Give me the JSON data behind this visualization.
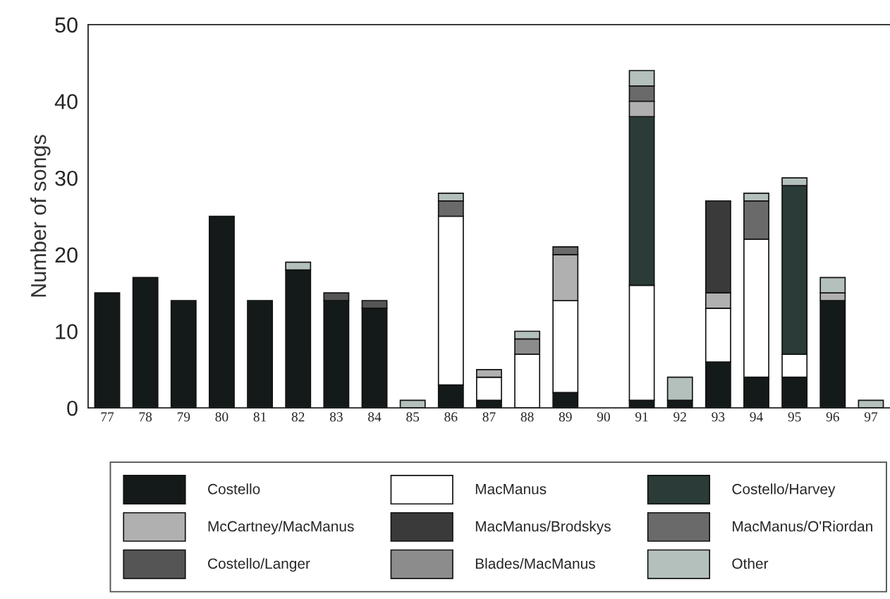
{
  "chart_data": {
    "type": "bar",
    "stacked": true,
    "ylabel": "Number of songs",
    "categories": [
      "77",
      "78",
      "79",
      "80",
      "81",
      "82",
      "83",
      "84",
      "85",
      "86",
      "87",
      "88",
      "89",
      "90",
      "91",
      "92",
      "93",
      "94",
      "95",
      "96",
      "97"
    ],
    "series": [
      {
        "name": "Costello",
        "color": "#141a1a",
        "values": [
          15,
          17,
          14,
          25,
          14,
          18,
          14,
          13,
          0,
          3,
          1,
          0,
          2,
          0,
          1,
          1,
          6,
          4,
          4,
          14,
          0
        ]
      },
      {
        "name": "MacManus",
        "color": "#ffffff",
        "values": [
          0,
          0,
          0,
          0,
          0,
          0,
          0,
          0,
          0,
          22,
          3,
          7,
          12,
          0,
          15,
          0,
          7,
          18,
          3,
          0,
          0
        ]
      },
      {
        "name": "Costello/Harvey",
        "color": "#2a3b38",
        "values": [
          0,
          0,
          0,
          0,
          0,
          0,
          0,
          0,
          0,
          0,
          0,
          0,
          0,
          0,
          22,
          0,
          0,
          0,
          22,
          0,
          0
        ]
      },
      {
        "name": "McCartney/MacManus",
        "color": "#b0b0b0",
        "values": [
          0,
          0,
          0,
          0,
          0,
          0,
          0,
          0,
          0,
          0,
          1,
          0,
          6,
          0,
          2,
          0,
          2,
          0,
          0,
          1,
          0
        ]
      },
      {
        "name": "MacManus/Brodskys",
        "color": "#3a3a3a",
        "values": [
          0,
          0,
          0,
          0,
          0,
          0,
          0,
          0,
          0,
          0,
          0,
          0,
          0,
          0,
          0,
          0,
          12,
          0,
          0,
          0,
          0
        ]
      },
      {
        "name": "MacManus/O'Riordan",
        "color": "#6a6a6a",
        "values": [
          0,
          0,
          0,
          0,
          0,
          0,
          0,
          0,
          0,
          2,
          0,
          0,
          1,
          0,
          2,
          0,
          0,
          5,
          0,
          0,
          0
        ]
      },
      {
        "name": "Costello/Langer",
        "color": "#555555",
        "values": [
          0,
          0,
          0,
          0,
          0,
          0,
          1,
          1,
          0,
          0,
          0,
          0,
          0,
          0,
          0,
          0,
          0,
          0,
          0,
          0,
          0
        ]
      },
      {
        "name": "Blades/MacManus",
        "color": "#8c8c8c",
        "values": [
          0,
          0,
          0,
          0,
          0,
          0,
          0,
          0,
          0,
          0,
          0,
          2,
          0,
          0,
          0,
          0,
          0,
          0,
          0,
          0,
          0
        ]
      },
      {
        "name": "Other",
        "color": "#b4c0bc",
        "values": [
          0,
          0,
          0,
          0,
          0,
          1,
          0,
          0,
          1,
          1,
          0,
          1,
          0,
          0,
          2,
          3,
          0,
          1,
          1,
          2,
          1
        ]
      }
    ],
    "ylim": [
      0,
      50
    ],
    "yticks": [
      0,
      10,
      20,
      30,
      40,
      50
    ],
    "grid": false,
    "legend": "bottom"
  }
}
